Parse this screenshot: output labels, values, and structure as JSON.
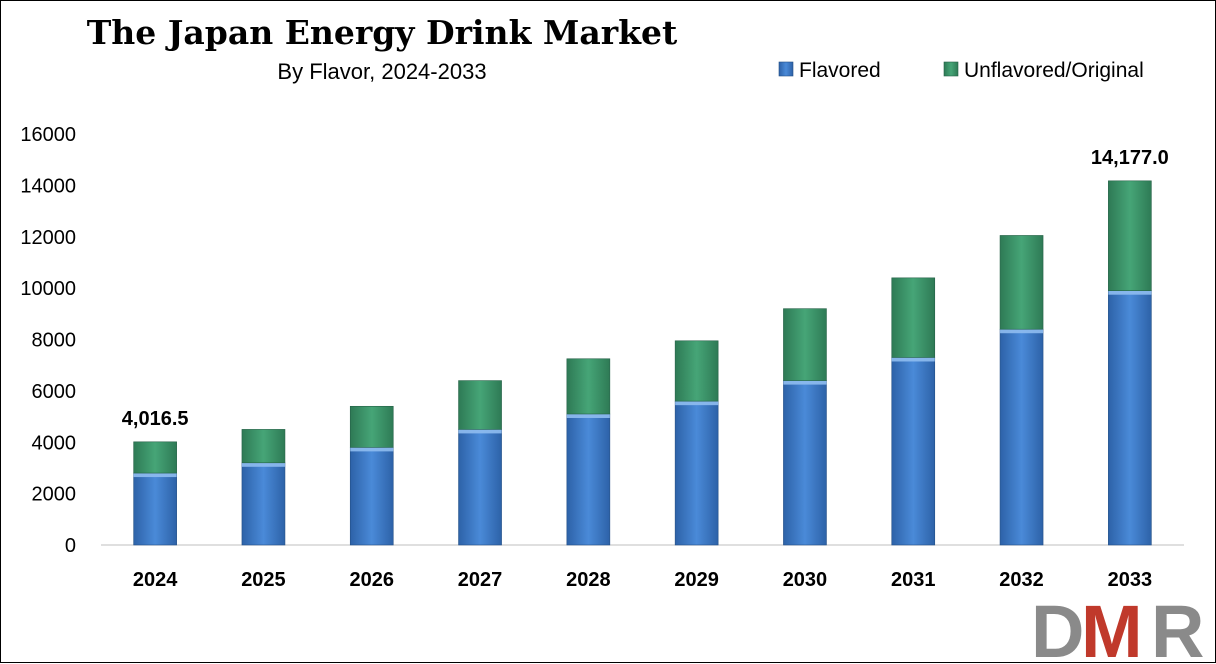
{
  "chart_data": {
    "type": "bar",
    "stacked": true,
    "title": "The Japan Energy Drink Market",
    "subtitle": "By Flavor, 2024-2033",
    "categories": [
      "2024",
      "2025",
      "2026",
      "2027",
      "2028",
      "2029",
      "2030",
      "2031",
      "2032",
      "2033"
    ],
    "series": [
      {
        "name": "Flavored",
        "color": "#3a78c8",
        "values": [
          2800,
          3200,
          3800,
          4500,
          5100,
          5600,
          6400,
          7300,
          8400,
          9900
        ]
      },
      {
        "name": "Unflavored/Original",
        "color": "#3a8f66",
        "values": [
          1216.5,
          1300,
          1600,
          1900,
          2150,
          2350,
          2800,
          3100,
          3650,
          4277
        ]
      }
    ],
    "data_labels": {
      "2024": "4,016.5",
      "2033": "14,177.0"
    },
    "yticks": [
      "0",
      "2000",
      "4000",
      "6000",
      "8000",
      "10000",
      "12000",
      "14000",
      "16000"
    ],
    "ylim": [
      0,
      16000
    ],
    "legend_position": "top-right",
    "grid": false
  },
  "logo": {
    "text": "DMR",
    "colors": [
      "#8a8a8a",
      "#c0392b"
    ]
  }
}
